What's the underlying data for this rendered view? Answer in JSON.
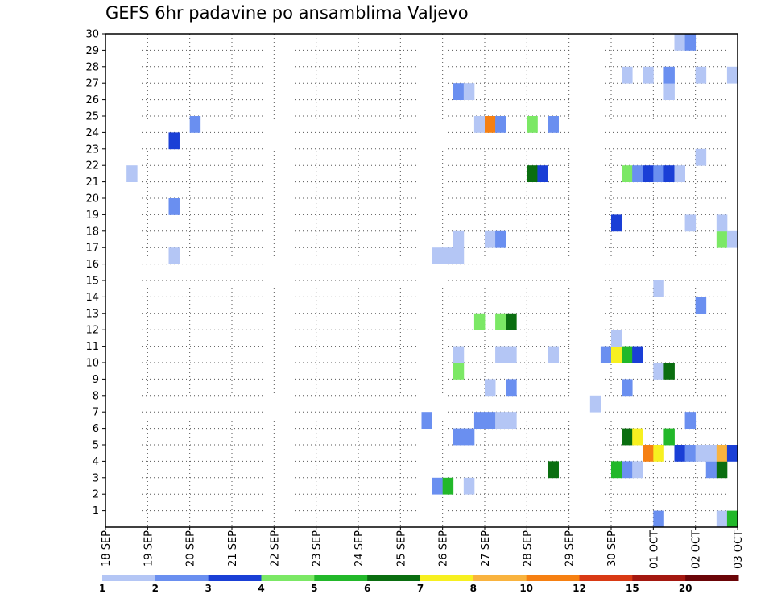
{
  "chart_data": {
    "type": "heatmap",
    "title": "GEFS 6hr padavine po ansamblima Valjevo",
    "xlabel": "",
    "ylabel": "",
    "x_ticks": [
      "18 SEP",
      "19 SEP",
      "20 SEP",
      "21 SEP",
      "22 SEP",
      "23 SEP",
      "24 SEP",
      "25 SEP",
      "26 SEP",
      "27 SEP",
      "28 SEP",
      "29 SEP",
      "30 SEP",
      "01 OCT",
      "02 OCT",
      "03 OCT"
    ],
    "y_ticks": [
      "1",
      "2",
      "3",
      "4",
      "5",
      "6",
      "7",
      "8",
      "9",
      "10",
      "11",
      "12",
      "13",
      "14",
      "15",
      "16",
      "17",
      "18",
      "19",
      "20",
      "21",
      "22",
      "23",
      "24",
      "25",
      "26",
      "27",
      "28",
      "29",
      "30"
    ],
    "xlim": [
      0,
      15
    ],
    "ylim": [
      0,
      30
    ],
    "grid": true,
    "colorbar": {
      "labels": [
        "1",
        "2",
        "3",
        "4",
        "5",
        "6",
        "7",
        "8",
        "10",
        "12",
        "15",
        "20"
      ],
      "colors": [
        "#b4c6f5",
        "#6a8ff0",
        "#1a3fd6",
        "#7be865",
        "#22b82a",
        "#0a6e10",
        "#f7f020",
        "#f9b33e",
        "#f68012",
        "#d93a14",
        "#a41810",
        "#6b0508"
      ]
    },
    "cells": [
      {
        "x": 7.75,
        "y": 2,
        "color": "#6a8ff0"
      },
      {
        "x": 8.0,
        "y": 2,
        "color": "#22b82a"
      },
      {
        "x": 8.5,
        "y": 2,
        "color": "#b4c6f5"
      },
      {
        "x": 10.5,
        "y": 3,
        "color": "#0a6e10"
      },
      {
        "x": 12.0,
        "y": 3,
        "color": "#22b82a"
      },
      {
        "x": 12.25,
        "y": 3,
        "color": "#6a8ff0"
      },
      {
        "x": 12.5,
        "y": 3,
        "color": "#b4c6f5"
      },
      {
        "x": 14.25,
        "y": 3,
        "color": "#6a8ff0"
      },
      {
        "x": 14.5,
        "y": 3,
        "color": "#0a6e10"
      },
      {
        "x": 12.75,
        "y": 4,
        "color": "#f68012"
      },
      {
        "x": 13.0,
        "y": 4,
        "color": "#f7f020"
      },
      {
        "x": 13.5,
        "y": 4,
        "color": "#1a3fd6"
      },
      {
        "x": 13.75,
        "y": 4,
        "color": "#6a8ff0"
      },
      {
        "x": 14.0,
        "y": 4,
        "color": "#b4c6f5"
      },
      {
        "x": 14.25,
        "y": 4,
        "color": "#b4c6f5"
      },
      {
        "x": 14.5,
        "y": 4,
        "color": "#f9b33e"
      },
      {
        "x": 14.75,
        "y": 4,
        "color": "#1a3fd6"
      },
      {
        "x": 8.25,
        "y": 5,
        "color": "#6a8ff0"
      },
      {
        "x": 8.5,
        "y": 5,
        "color": "#6a8ff0"
      },
      {
        "x": 12.25,
        "y": 5,
        "color": "#0a6e10"
      },
      {
        "x": 12.5,
        "y": 5,
        "color": "#f7f020"
      },
      {
        "x": 13.25,
        "y": 5,
        "color": "#22b82a"
      },
      {
        "x": 7.5,
        "y": 6,
        "color": "#6a8ff0"
      },
      {
        "x": 8.75,
        "y": 6,
        "color": "#6a8ff0"
      },
      {
        "x": 9.0,
        "y": 6,
        "color": "#6a8ff0"
      },
      {
        "x": 9.25,
        "y": 6,
        "color": "#b4c6f5"
      },
      {
        "x": 9.5,
        "y": 6,
        "color": "#b4c6f5"
      },
      {
        "x": 13.75,
        "y": 6,
        "color": "#6a8ff0"
      },
      {
        "x": 11.5,
        "y": 7,
        "color": "#b4c6f5"
      },
      {
        "x": 9.0,
        "y": 8,
        "color": "#b4c6f5"
      },
      {
        "x": 9.5,
        "y": 8,
        "color": "#6a8ff0"
      },
      {
        "x": 12.25,
        "y": 8,
        "color": "#6a8ff0"
      },
      {
        "x": 8.25,
        "y": 9,
        "color": "#7be865"
      },
      {
        "x": 13.0,
        "y": 9,
        "color": "#b4c6f5"
      },
      {
        "x": 13.25,
        "y": 9,
        "color": "#0a6e10"
      },
      {
        "x": 8.25,
        "y": 10,
        "color": "#b4c6f5"
      },
      {
        "x": 9.25,
        "y": 10,
        "color": "#b4c6f5"
      },
      {
        "x": 9.5,
        "y": 10,
        "color": "#b4c6f5"
      },
      {
        "x": 10.5,
        "y": 10,
        "color": "#b4c6f5"
      },
      {
        "x": 11.75,
        "y": 10,
        "color": "#6a8ff0"
      },
      {
        "x": 12.0,
        "y": 10,
        "color": "#f7f020"
      },
      {
        "x": 12.25,
        "y": 10,
        "color": "#22b82a"
      },
      {
        "x": 12.5,
        "y": 10,
        "color": "#1a3fd6"
      },
      {
        "x": 12.0,
        "y": 11,
        "color": "#b4c6f5"
      },
      {
        "x": 8.75,
        "y": 12,
        "color": "#7be865"
      },
      {
        "x": 9.25,
        "y": 12,
        "color": "#7be865"
      },
      {
        "x": 9.5,
        "y": 12,
        "color": "#0a6e10"
      },
      {
        "x": 14.0,
        "y": 13,
        "color": "#6a8ff0"
      },
      {
        "x": 13.0,
        "y": 14,
        "color": "#b4c6f5"
      },
      {
        "x": 7.75,
        "y": 16,
        "color": "#b4c6f5"
      },
      {
        "x": 8.0,
        "y": 16,
        "color": "#b4c6f5"
      },
      {
        "x": 8.25,
        "y": 16,
        "color": "#b4c6f5"
      },
      {
        "x": 1.5,
        "y": 16,
        "color": "#b4c6f5"
      },
      {
        "x": 8.25,
        "y": 17,
        "color": "#b4c6f5"
      },
      {
        "x": 9.0,
        "y": 17,
        "color": "#b4c6f5"
      },
      {
        "x": 9.25,
        "y": 17,
        "color": "#6a8ff0"
      },
      {
        "x": 14.5,
        "y": 17,
        "color": "#7be865"
      },
      {
        "x": 14.75,
        "y": 17,
        "color": "#b4c6f5"
      },
      {
        "x": 13.75,
        "y": 18,
        "color": "#b4c6f5"
      },
      {
        "x": 14.5,
        "y": 18,
        "color": "#b4c6f5"
      },
      {
        "x": 12.0,
        "y": 18,
        "color": "#1a3fd6"
      },
      {
        "x": 1.5,
        "y": 19,
        "color": "#6a8ff0"
      },
      {
        "x": 0.5,
        "y": 21,
        "color": "#b4c6f5"
      },
      {
        "x": 10.0,
        "y": 21,
        "color": "#0a6e10"
      },
      {
        "x": 10.25,
        "y": 21,
        "color": "#1a3fd6"
      },
      {
        "x": 12.25,
        "y": 21,
        "color": "#7be865"
      },
      {
        "x": 12.5,
        "y": 21,
        "color": "#6a8ff0"
      },
      {
        "x": 12.75,
        "y": 21,
        "color": "#1a3fd6"
      },
      {
        "x": 13.0,
        "y": 21,
        "color": "#6a8ff0"
      },
      {
        "x": 13.25,
        "y": 21,
        "color": "#1a3fd6"
      },
      {
        "x": 13.5,
        "y": 21,
        "color": "#b4c6f5"
      },
      {
        "x": 14.0,
        "y": 22,
        "color": "#b4c6f5"
      },
      {
        "x": 1.5,
        "y": 23,
        "color": "#1a3fd6"
      },
      {
        "x": 2.0,
        "y": 24,
        "color": "#6a8ff0"
      },
      {
        "x": 8.75,
        "y": 24,
        "color": "#b4c6f5"
      },
      {
        "x": 9.0,
        "y": 24,
        "color": "#f68012"
      },
      {
        "x": 9.25,
        "y": 24,
        "color": "#6a8ff0"
      },
      {
        "x": 10.0,
        "y": 24,
        "color": "#7be865"
      },
      {
        "x": 10.5,
        "y": 24,
        "color": "#6a8ff0"
      },
      {
        "x": 8.25,
        "y": 26,
        "color": "#6a8ff0"
      },
      {
        "x": 8.5,
        "y": 26,
        "color": "#b4c6f5"
      },
      {
        "x": 13.25,
        "y": 26,
        "color": "#b4c6f5"
      },
      {
        "x": 12.25,
        "y": 27,
        "color": "#b4c6f5"
      },
      {
        "x": 12.75,
        "y": 27,
        "color": "#b4c6f5"
      },
      {
        "x": 13.25,
        "y": 27,
        "color": "#6a8ff0"
      },
      {
        "x": 14.0,
        "y": 27,
        "color": "#b4c6f5"
      },
      {
        "x": 14.75,
        "y": 27,
        "color": "#b4c6f5"
      },
      {
        "x": 13.5,
        "y": 29,
        "color": "#b4c6f5"
      },
      {
        "x": 13.75,
        "y": 29,
        "color": "#6a8ff0"
      },
      {
        "x": 13.0,
        "y": 0,
        "color": "#6a8ff0"
      },
      {
        "x": 14.5,
        "y": 0,
        "color": "#b4c6f5"
      },
      {
        "x": 14.75,
        "y": 0,
        "color": "#22b82a"
      }
    ]
  }
}
